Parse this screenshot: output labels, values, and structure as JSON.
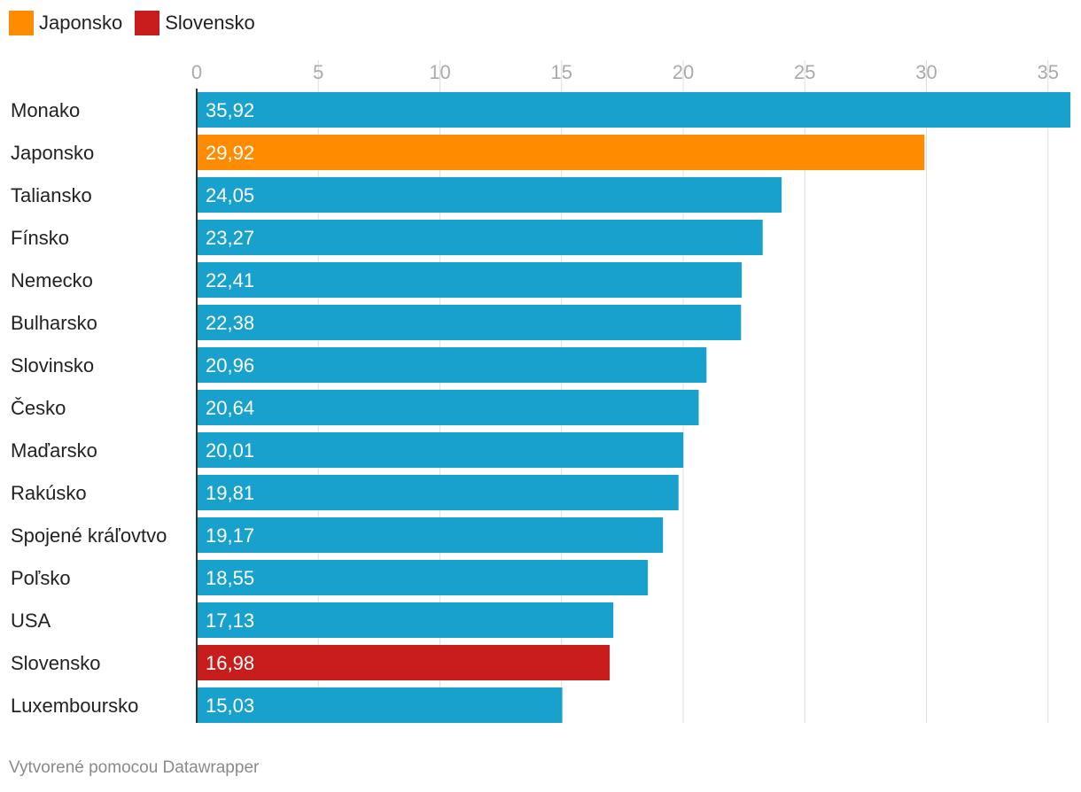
{
  "legend": [
    {
      "label": "Japonsko",
      "color": "#ff8c00"
    },
    {
      "label": "Slovensko",
      "color": "#c71e1d"
    }
  ],
  "footer": "Vytvorené pomocou Datawrapper",
  "colors": {
    "default_bar": "#18a1cd",
    "grid": "#dddddd",
    "tick_label": "#aaaaaa",
    "category_label": "#222222",
    "value_label": "#ffffff",
    "axis_line": "#333333"
  },
  "chart_data": {
    "type": "bar",
    "orientation": "horizontal",
    "categories": [
      "Monako",
      "Japonsko",
      "Taliansko",
      "Fínsko",
      "Nemecko",
      "Bulharsko",
      "Slovinsko",
      "Česko",
      "Maďarsko",
      "Rakúsko",
      "Spojené kráľovtvo",
      "Poľsko",
      "USA",
      "Slovensko",
      "Luxemboursko"
    ],
    "values": [
      35.92,
      29.92,
      24.05,
      23.27,
      22.41,
      22.38,
      20.96,
      20.64,
      20.01,
      19.81,
      19.17,
      18.55,
      17.13,
      16.98,
      15.03
    ],
    "value_labels": [
      "35,92",
      "29,92",
      "24,05",
      "23,27",
      "22,41",
      "22,38",
      "20,96",
      "20,64",
      "20,01",
      "19,81",
      "19,17",
      "18,55",
      "17,13",
      "16,98",
      "15,03"
    ],
    "highlight": {
      "Japonsko": "#ff8c00",
      "Slovensko": "#c71e1d"
    },
    "xlim": [
      0,
      35.92
    ],
    "ticks": [
      0,
      5,
      10,
      15,
      20,
      25,
      30,
      35
    ],
    "tick_labels": [
      "0",
      "5",
      "10",
      "15",
      "20",
      "25",
      "30",
      "35"
    ],
    "grid": true,
    "legend_position": "top-left"
  }
}
